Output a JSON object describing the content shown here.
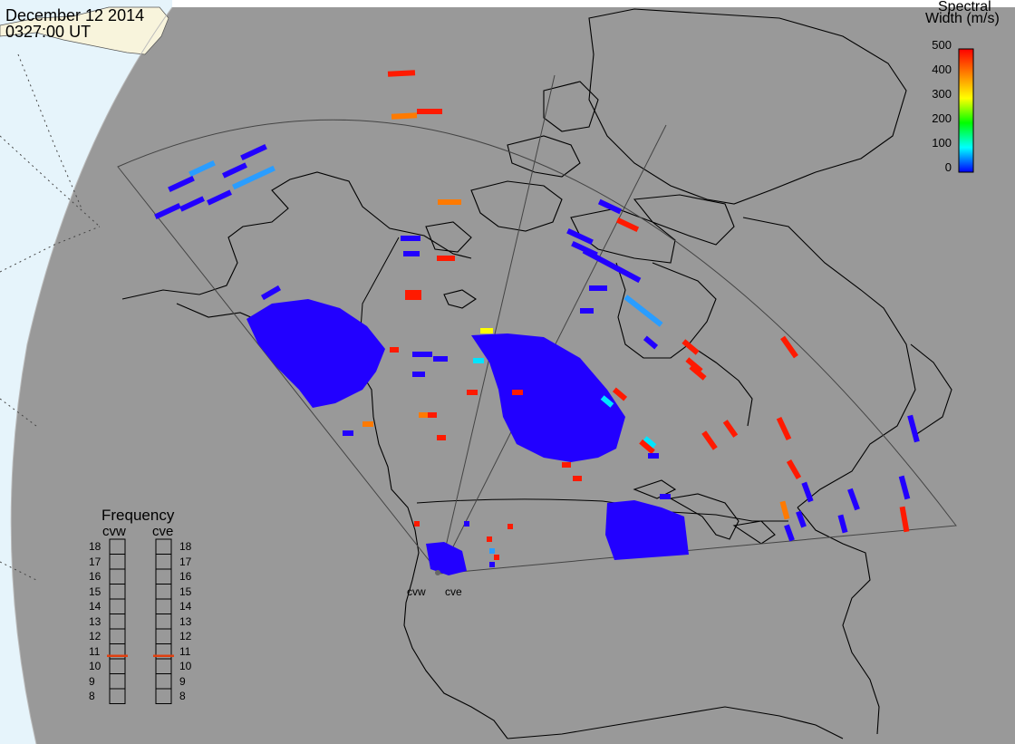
{
  "header": {
    "date": "December 12 2014",
    "time": "0327:00 UT"
  },
  "colorbar": {
    "title_line1": "Spectral",
    "title_line2": "Width (m/s)",
    "ticks": [
      "500",
      "400",
      "300",
      "200",
      "100",
      "0"
    ],
    "colors": [
      "#ff0000",
      "#ff8000",
      "#ffff00",
      "#00ff00",
      "#00ffff",
      "#0000ff"
    ]
  },
  "frequency_panel": {
    "title": "Frequency",
    "radars": [
      {
        "name": "cvw",
        "selected_value": 10.7
      },
      {
        "name": "cve",
        "selected_value": 10.7
      }
    ],
    "ticks": [
      "18",
      "17",
      "16",
      "15",
      "14",
      "13",
      "12",
      "11",
      "10",
      "9",
      "8"
    ],
    "marker_color": "#e04010"
  },
  "radar_labels": {
    "west": "cvw",
    "east": "cve"
  },
  "colors": {
    "space": "#ffffff",
    "globe": "#999999",
    "daylight_land": "#f8f4dc",
    "daylight_ocean": "#e6f4fb",
    "coastline": "#000000",
    "low_width": "#2200ff",
    "mid_width": "#2a9dff",
    "high_width": "#ff1a00",
    "orange_width": "#ff7a00",
    "yellow_width": "#ffff00",
    "cyan_width": "#00e5ff"
  }
}
